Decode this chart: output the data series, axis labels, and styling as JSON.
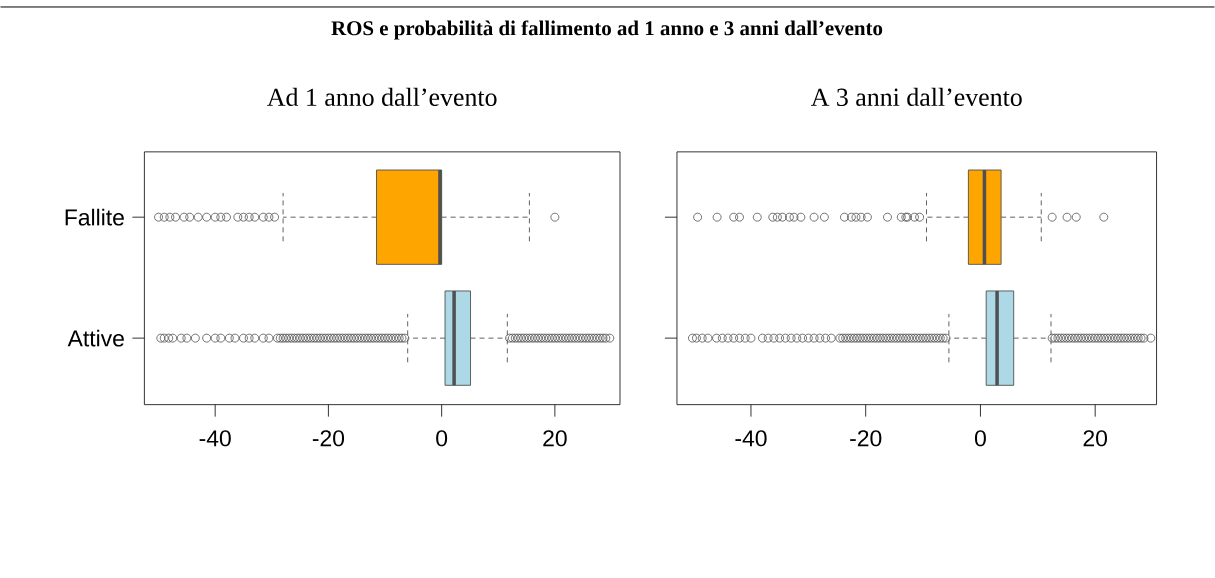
{
  "chart_data": [
    {
      "type": "box",
      "title": "**ROS e probabilità di fallimento ad 1 anno e 3 anni dall’evento**",
      "subtitle": "Ad 1 anno dall’evento",
      "orientation": "horizontal",
      "categories": [
        "Fallite",
        "Attive"
      ],
      "colors": [
        "#ffa500",
        "#add8e6"
      ],
      "boxes": [
        {
          "low": -28,
          "q1": -11.5,
          "median": -0.3,
          "q3": 0,
          "high": 15.5,
          "outliers": [
            -50,
            -49,
            -48,
            -47,
            -45.5,
            -44.5,
            -43,
            -41.5,
            -40,
            -39,
            -38,
            -36,
            -35,
            -34,
            -33,
            -31.5,
            -30.5,
            -29.5,
            20
          ]
        },
        {
          "low": -6,
          "q1": 0.6,
          "median": 2.2,
          "q3": 5.1,
          "high": 11.6,
          "outliers": [
            -49.6,
            -49,
            -48.2,
            -47.5,
            -46,
            -45,
            -43.5,
            -41.5,
            -40,
            -39,
            -37.5,
            -36.5,
            -35,
            -34,
            -33,
            -31.5,
            -30.5,
            -29,
            -28.5,
            -28,
            -27.5,
            -27,
            -26.5,
            -26,
            -25.5,
            -25,
            -24.5,
            -24,
            -23.5,
            -23,
            -22.5,
            -22,
            -21.5,
            -21,
            -20.5,
            -20,
            -19.5,
            -19,
            -18.5,
            -18,
            -17.5,
            -17,
            -16.5,
            -16,
            -15.5,
            -15,
            -14.5,
            -14,
            -13.5,
            -13,
            -12.5,
            -12,
            -11.5,
            -11,
            -10.5,
            -10,
            -9.5,
            -9,
            -8.5,
            -8,
            -7.5,
            -7,
            -6.5,
            12,
            12.5,
            13,
            13.5,
            14,
            14.5,
            15,
            15.5,
            16,
            16.5,
            17,
            17.5,
            18,
            18.5,
            19,
            19.5,
            20,
            20.5,
            21,
            21.5,
            22,
            22.5,
            23,
            23.5,
            24,
            24.5,
            25,
            25.5,
            26,
            26.5,
            27,
            27.5,
            28,
            28.5,
            29,
            29.7
          ]
        }
      ],
      "xlim": [
        -52.5,
        31.5
      ],
      "xticks": [
        -40,
        -20,
        0,
        20
      ]
    },
    {
      "type": "box",
      "subtitle": "A 3 anni dall’evento",
      "orientation": "horizontal",
      "categories": [
        null,
        null
      ],
      "colors": [
        "#ffa500",
        "#add8e6"
      ],
      "boxes": [
        {
          "low": -9.4,
          "q1": -2.1,
          "median": 0.7,
          "q3": 3.6,
          "high": 10.6,
          "outliers": [
            -49.3,
            -45.9,
            -43,
            -42,
            -38.9,
            -36.2,
            -35.4,
            -34.5,
            -33.3,
            -32.5,
            -31.3,
            -29,
            -27.2,
            -23.7,
            -22.5,
            -21.7,
            -20.8,
            -19.7,
            -16.2,
            -13.8,
            -13,
            -12.7,
            -11.5,
            -10.6,
            12.5,
            15.1,
            16.7,
            21.5
          ]
        },
        {
          "low": -5.5,
          "q1": 1,
          "median": 2.9,
          "q3": 5.8,
          "high": 12.3,
          "outliers": [
            -50.2,
            -49.5,
            -48.5,
            -47.5,
            -46,
            -45,
            -44,
            -43,
            -42,
            -41,
            -40,
            -38,
            -37,
            -36,
            -35,
            -34,
            -33,
            -32,
            -31,
            -30,
            -29,
            -28,
            -27,
            -26,
            -24.5,
            -24,
            -23.5,
            -23,
            -22.5,
            -22,
            -21.5,
            -21,
            -20.5,
            -20,
            -19.5,
            -19,
            -18.5,
            -18,
            -17.5,
            -17,
            -16.5,
            -16,
            -15.5,
            -15,
            -14.5,
            -14,
            -13.5,
            -13,
            -12.5,
            -12,
            -11.5,
            -11,
            -10.5,
            -10,
            -9.5,
            -9,
            -8.5,
            -8,
            -7.5,
            -7,
            -6.5,
            -6,
            12.5,
            13,
            13.5,
            14,
            14.5,
            15,
            15.5,
            16,
            16.5,
            17,
            17.5,
            18,
            18.5,
            19,
            19.5,
            20,
            20.5,
            21,
            21.5,
            22,
            22.5,
            23,
            23.5,
            24,
            24.5,
            25,
            25.5,
            26,
            26.5,
            27,
            27.5,
            28,
            28.5,
            29.7
          ]
        }
      ],
      "xlim": [
        -52.9,
        30.7
      ],
      "xticks": [
        -40,
        -20,
        0,
        20
      ],
      "tick_labels": "x"
    }
  ]
}
